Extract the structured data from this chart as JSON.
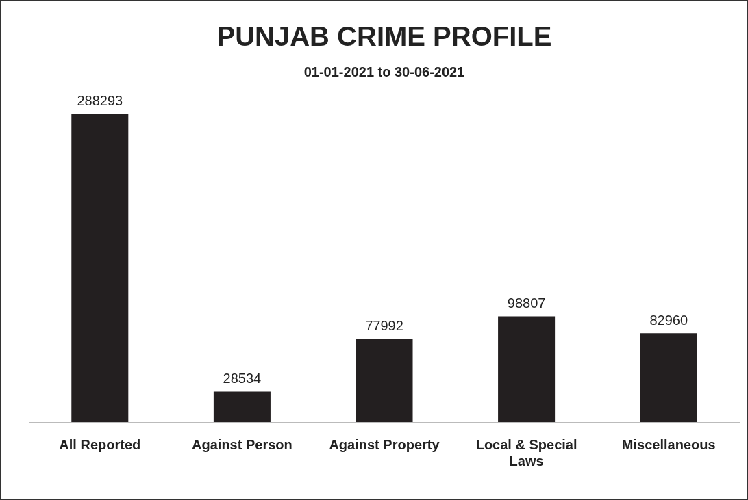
{
  "chart_data": {
    "type": "bar",
    "title": "PUNJAB CRIME PROFILE",
    "subtitle": "01-01-2021 to 30-06-2021",
    "categories": [
      "All Reported",
      "Against Person",
      "Against Property",
      "Local & Special Laws",
      "Miscellaneous"
    ],
    "values": [
      288293,
      28534,
      77992,
      98807,
      82960
    ],
    "color": "#231f20",
    "data_labels": true,
    "grid": false,
    "legend": false
  }
}
